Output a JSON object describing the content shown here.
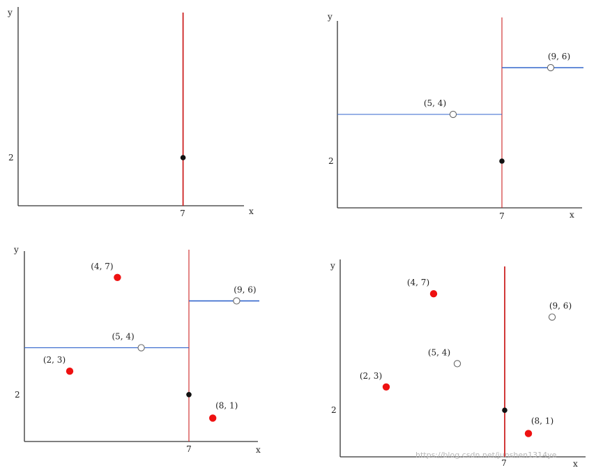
{
  "colors": {
    "axis": "#333333",
    "split_vertical": "#cc2222",
    "split_horizontal": "#3366cc",
    "point_filled_red": "#ee1111",
    "point_black": "#111111",
    "point_hollow": "#666666"
  },
  "labels": {
    "x_axis": "x",
    "y_axis": "y",
    "tick_x": "7",
    "tick_y": "2"
  },
  "panels": [
    {
      "id": "p1",
      "points": [
        {
          "label": "",
          "x": 7,
          "y": 2,
          "style": "black"
        }
      ],
      "vsplit": true,
      "hsplits": []
    },
    {
      "id": "p2",
      "points": [
        {
          "label": "(5, 4)",
          "x": 5,
          "y": 4,
          "style": "hollow"
        },
        {
          "label": "(9, 6)",
          "x": 9,
          "y": 6,
          "style": "hollow"
        },
        {
          "label": "",
          "x": 7,
          "y": 2,
          "style": "black"
        }
      ],
      "vsplit": true,
      "hsplits": [
        "left",
        "right"
      ]
    },
    {
      "id": "p3",
      "points": [
        {
          "label": "(4, 7)",
          "x": 4,
          "y": 7,
          "style": "red"
        },
        {
          "label": "(9, 6)",
          "x": 9,
          "y": 6,
          "style": "hollow"
        },
        {
          "label": "(5, 4)",
          "x": 5,
          "y": 4,
          "style": "hollow"
        },
        {
          "label": "(2, 3)",
          "x": 2,
          "y": 3,
          "style": "red"
        },
        {
          "label": "",
          "x": 7,
          "y": 2,
          "style": "black"
        },
        {
          "label": "(8, 1)",
          "x": 8,
          "y": 1,
          "style": "red"
        }
      ],
      "vsplit": true,
      "hsplits": [
        "left",
        "right"
      ]
    },
    {
      "id": "p4",
      "points": [
        {
          "label": "(4, 7)",
          "x": 4,
          "y": 7,
          "style": "red"
        },
        {
          "label": "(9, 6)",
          "x": 9,
          "y": 6,
          "style": "hollow"
        },
        {
          "label": "(5, 4)",
          "x": 5,
          "y": 4,
          "style": "hollow"
        },
        {
          "label": "(2, 3)",
          "x": 2,
          "y": 3,
          "style": "red"
        },
        {
          "label": "",
          "x": 7,
          "y": 2,
          "style": "black"
        },
        {
          "label": "(8, 1)",
          "x": 8,
          "y": 1,
          "style": "red"
        }
      ],
      "vsplit": true,
      "hsplits": []
    }
  ],
  "watermark": "https://blog.csdn.net/junshen1314ye"
}
